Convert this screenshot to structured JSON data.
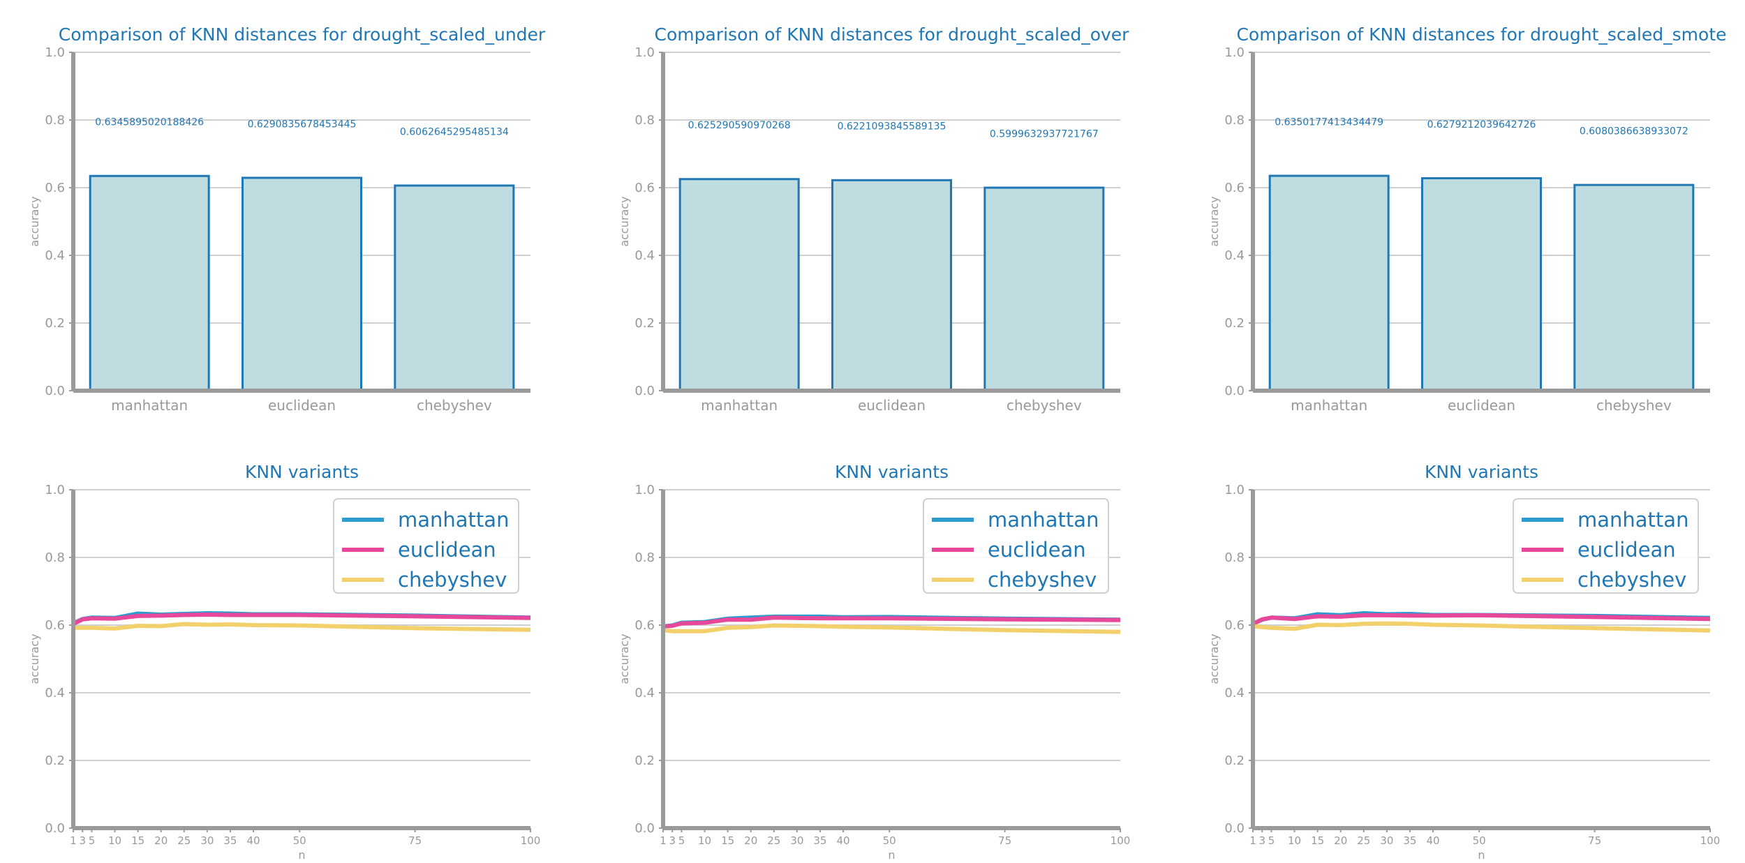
{
  "colors": {
    "title": "#1f77b4",
    "axis_spine": "#9a9a9a",
    "grid": "#d0d0d0",
    "tick_label": "#999999",
    "bar_fill": "#bfdde1",
    "bar_edge": "#1f77b4",
    "value_label": "#1f77b4",
    "series": {
      "manhattan": "#2b9bd0",
      "euclidean": "#e8489a",
      "chebyshev": "#f2d06b"
    }
  },
  "chart_data": [
    {
      "type": "bar",
      "title": "Comparison of KNN distances for drought_scaled_under",
      "xlabel": "",
      "ylabel": "accuracy",
      "ylim": [
        0,
        1
      ],
      "yticks": [
        "0.0",
        "0.2",
        "0.4",
        "0.6",
        "0.8",
        "1.0"
      ],
      "categories": [
        "manhattan",
        "euclidean",
        "chebyshev"
      ],
      "values": [
        0.6345895020188426,
        0.6290835678453445,
        0.6062645295485134
      ],
      "value_labels": [
        "0.6345895020188426",
        "0.6290835678453445",
        "0.6062645295485134"
      ],
      "grid": true
    },
    {
      "type": "bar",
      "title": "Comparison of KNN distances for drought_scaled_over",
      "xlabel": "",
      "ylabel": "accuracy",
      "ylim": [
        0,
        1
      ],
      "yticks": [
        "0.0",
        "0.2",
        "0.4",
        "0.6",
        "0.8",
        "1.0"
      ],
      "categories": [
        "manhattan",
        "euclidean",
        "chebyshev"
      ],
      "values": [
        0.625290590970268,
        0.6221093845589135,
        0.5999632937721767
      ],
      "value_labels": [
        "0.625290590970268",
        "0.6221093845589135",
        "0.5999632937721767"
      ],
      "grid": true
    },
    {
      "type": "bar",
      "title": "Comparison of KNN distances for drought_scaled_smote",
      "xlabel": "",
      "ylabel": "accuracy",
      "ylim": [
        0,
        1
      ],
      "yticks": [
        "0.0",
        "0.2",
        "0.4",
        "0.6",
        "0.8",
        "1.0"
      ],
      "categories": [
        "manhattan",
        "euclidean",
        "chebyshev"
      ],
      "values": [
        0.6350177413434479,
        0.6279212039642726,
        0.6080386638933072
      ],
      "value_labels": [
        "0.6350177413434479",
        "0.6279212039642726",
        "0.6080386638933072"
      ],
      "grid": true
    },
    {
      "type": "line",
      "title": "KNN variants",
      "xlabel": "n",
      "ylabel": "accuracy",
      "xlim": [
        1,
        100
      ],
      "ylim": [
        0,
        1
      ],
      "xticks": [
        1,
        3,
        5,
        10,
        15,
        20,
        25,
        30,
        35,
        40,
        50,
        75,
        100
      ],
      "yticks": [
        "0.0",
        "0.2",
        "0.4",
        "0.6",
        "0.8",
        "1.0"
      ],
      "legend_position": "top-right",
      "grid": true,
      "x": [
        1,
        3,
        5,
        10,
        15,
        20,
        25,
        30,
        35,
        40,
        50,
        75,
        100
      ],
      "series": [
        {
          "name": "manhattan",
          "values": [
            0.605,
            0.618,
            0.622,
            0.621,
            0.634,
            0.631,
            0.633,
            0.635,
            0.634,
            0.632,
            0.632,
            0.628,
            0.622
          ]
        },
        {
          "name": "euclidean",
          "values": [
            0.603,
            0.617,
            0.62,
            0.619,
            0.627,
            0.628,
            0.63,
            0.631,
            0.63,
            0.63,
            0.63,
            0.626,
            0.621
          ]
        },
        {
          "name": "chebyshev",
          "values": [
            0.592,
            0.592,
            0.592,
            0.59,
            0.598,
            0.597,
            0.603,
            0.601,
            0.602,
            0.6,
            0.599,
            0.591,
            0.586
          ]
        }
      ]
    },
    {
      "type": "line",
      "title": "KNN variants",
      "xlabel": "n",
      "ylabel": "accuracy",
      "xlim": [
        1,
        100
      ],
      "ylim": [
        0,
        1
      ],
      "xticks": [
        1,
        3,
        5,
        10,
        15,
        20,
        25,
        30,
        35,
        40,
        50,
        75,
        100
      ],
      "yticks": [
        "0.0",
        "0.2",
        "0.4",
        "0.6",
        "0.8",
        "1.0"
      ],
      "legend_position": "top-right",
      "grid": true,
      "x": [
        1,
        3,
        5,
        10,
        15,
        20,
        25,
        30,
        35,
        40,
        50,
        75,
        100
      ],
      "series": [
        {
          "name": "manhattan",
          "values": [
            0.596,
            0.599,
            0.607,
            0.609,
            0.619,
            0.622,
            0.625,
            0.625,
            0.625,
            0.623,
            0.624,
            0.619,
            0.616
          ]
        },
        {
          "name": "euclidean",
          "values": [
            0.596,
            0.598,
            0.605,
            0.607,
            0.616,
            0.616,
            0.622,
            0.621,
            0.62,
            0.62,
            0.62,
            0.617,
            0.615
          ]
        },
        {
          "name": "chebyshev",
          "values": [
            0.585,
            0.582,
            0.582,
            0.582,
            0.592,
            0.594,
            0.599,
            0.598,
            0.597,
            0.595,
            0.593,
            0.585,
            0.58
          ]
        }
      ]
    },
    {
      "type": "line",
      "title": "KNN variants",
      "xlabel": "n",
      "ylabel": "accuracy",
      "xlim": [
        1,
        100
      ],
      "ylim": [
        0,
        1
      ],
      "xticks": [
        1,
        3,
        5,
        10,
        15,
        20,
        25,
        30,
        35,
        40,
        50,
        75,
        100
      ],
      "yticks": [
        "0.0",
        "0.2",
        "0.4",
        "0.6",
        "0.8",
        "1.0"
      ],
      "legend_position": "top-right",
      "grid": true,
      "x": [
        1,
        3,
        5,
        10,
        15,
        20,
        25,
        30,
        35,
        40,
        50,
        75,
        100
      ],
      "series": [
        {
          "name": "manhattan",
          "values": [
            0.604,
            0.616,
            0.622,
            0.62,
            0.632,
            0.629,
            0.635,
            0.632,
            0.633,
            0.63,
            0.63,
            0.627,
            0.621
          ]
        },
        {
          "name": "euclidean",
          "values": [
            0.603,
            0.617,
            0.622,
            0.618,
            0.626,
            0.625,
            0.629,
            0.629,
            0.628,
            0.628,
            0.629,
            0.624,
            0.618
          ]
        },
        {
          "name": "chebyshev",
          "values": [
            0.597,
            0.594,
            0.592,
            0.589,
            0.601,
            0.6,
            0.604,
            0.605,
            0.604,
            0.601,
            0.599,
            0.591,
            0.584
          ]
        }
      ]
    }
  ]
}
